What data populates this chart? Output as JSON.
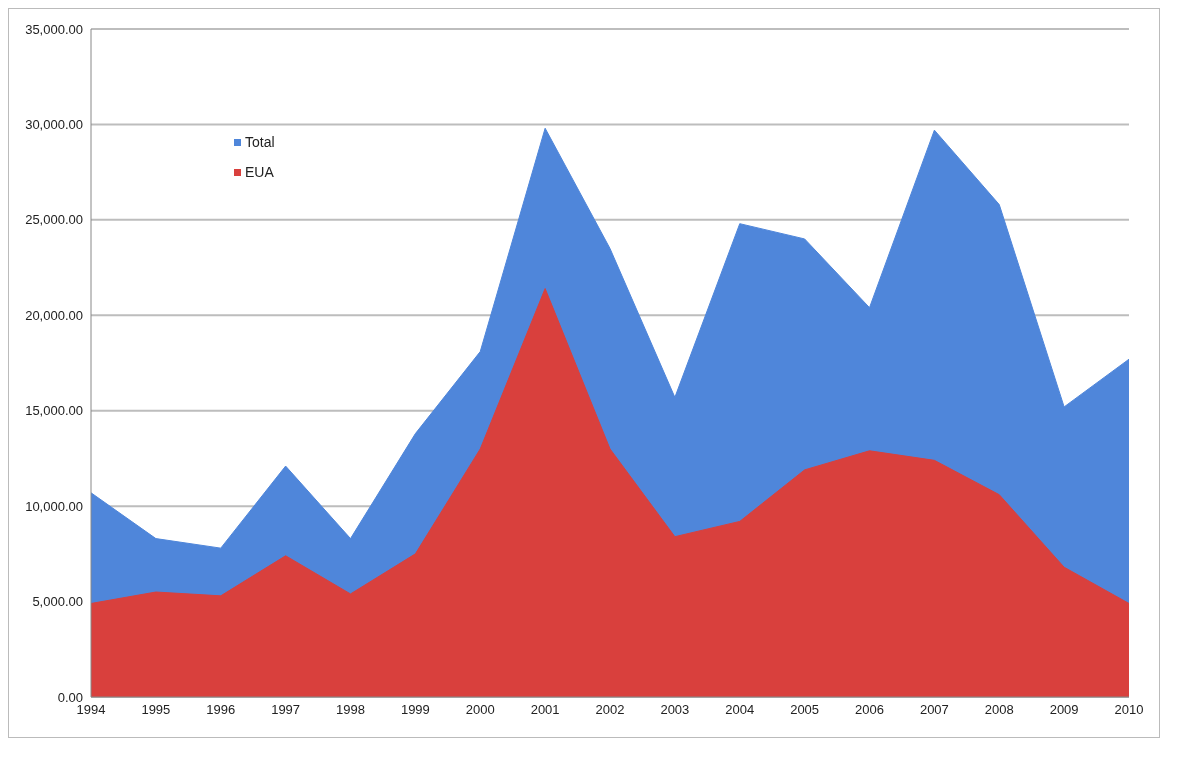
{
  "chart_data": {
    "type": "area",
    "categories": [
      "1994",
      "1995",
      "1996",
      "1997",
      "1998",
      "1999",
      "2000",
      "2001",
      "2002",
      "2003",
      "2004",
      "2005",
      "2006",
      "2007",
      "2008",
      "2009",
      "2010"
    ],
    "series": [
      {
        "name": "Total",
        "color": "#4f86da",
        "values": [
          10700,
          8300,
          7800,
          12100,
          8300,
          13800,
          18100,
          29800,
          23500,
          15700,
          24800,
          24000,
          20400,
          29700,
          25800,
          15200,
          17700
        ]
      },
      {
        "name": "EUA",
        "color": "#d9403d",
        "values": [
          4900,
          5500,
          5300,
          7400,
          5400,
          7500,
          13000,
          21400,
          13000,
          8400,
          9200,
          11900,
          12900,
          12400,
          10600,
          6800,
          4900
        ]
      }
    ],
    "ylim": [
      0,
      35000
    ],
    "yticks": [
      {
        "value": 0,
        "label": "0.00"
      },
      {
        "value": 5000,
        "label": "5,000.00"
      },
      {
        "value": 10000,
        "label": "10,000.00"
      },
      {
        "value": 15000,
        "label": "15,000.00"
      },
      {
        "value": 20000,
        "label": "20,000.00"
      },
      {
        "value": 25000,
        "label": "25,000.00"
      },
      {
        "value": 30000,
        "label": "30,000.00"
      },
      {
        "value": 35000,
        "label": "35,000.00"
      }
    ],
    "grid": "y",
    "legend": "top left"
  }
}
